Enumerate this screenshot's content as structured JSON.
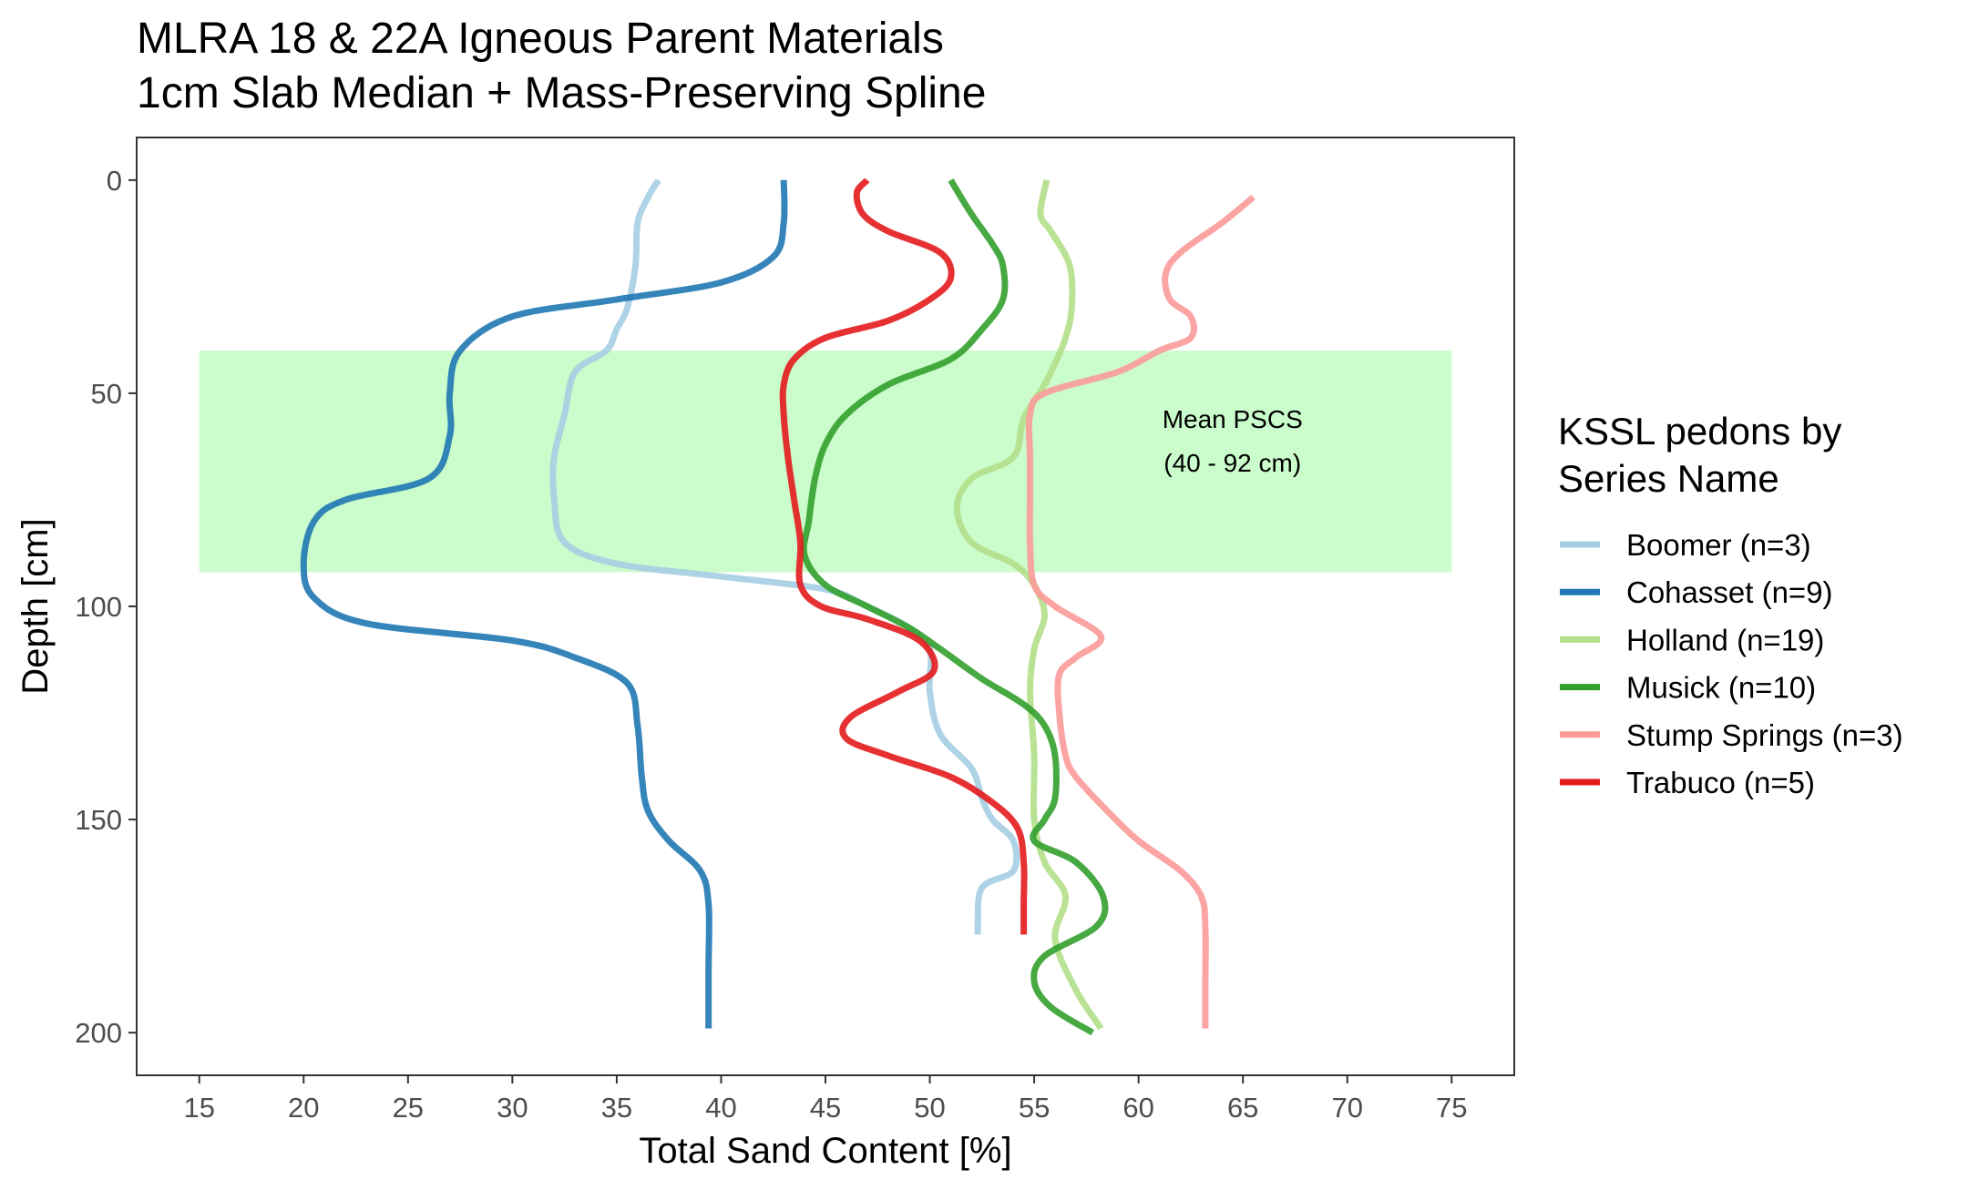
{
  "chart_data": {
    "type": "line",
    "title": [
      "MLRA 18 & 22A Igneous Parent Materials",
      "1cm Slab Median + Mass-Preserving Spline"
    ],
    "xlabel": "Total Sand Content [%]",
    "ylabel": "Depth [cm]",
    "xlim": [
      12,
      78
    ],
    "ylim": [
      210,
      -10
    ],
    "y_reversed": true,
    "x_ticks": [
      "15",
      "20",
      "25",
      "30",
      "35",
      "40",
      "45",
      "50",
      "55",
      "60",
      "65",
      "70",
      "75"
    ],
    "y_ticks": [
      "0",
      "50",
      "100",
      "150",
      "200"
    ],
    "grid": false,
    "legend": {
      "title": [
        "KSSL pedons by",
        "Series Name"
      ],
      "placement": "right"
    },
    "band": {
      "xmin": 15,
      "xmax": 75,
      "ymin": 40,
      "ymax": 92,
      "color": "#c8fcc8"
    },
    "annotation": [
      "Mean PSCS",
      "(40 - 92 cm)"
    ],
    "annotation_pos": {
      "x": 64.5,
      "y": 56
    },
    "series": [
      {
        "name": "Boomer (n=3)",
        "color": "#a6cee3",
        "points": [
          [
            37,
            0
          ],
          [
            36.5,
            4
          ],
          [
            36,
            10
          ],
          [
            35.9,
            20
          ],
          [
            35.5,
            30
          ],
          [
            35,
            35
          ],
          [
            34.5,
            40
          ],
          [
            33,
            45
          ],
          [
            32.5,
            55
          ],
          [
            32,
            65
          ],
          [
            32,
            75
          ],
          [
            32.5,
            85
          ],
          [
            35,
            90
          ],
          [
            40,
            93
          ],
          [
            45,
            96
          ],
          [
            47,
            100
          ],
          [
            49,
            105
          ],
          [
            50,
            110
          ],
          [
            50,
            120
          ],
          [
            50.5,
            130
          ],
          [
            52,
            138
          ],
          [
            52.5,
            145
          ],
          [
            53,
            150
          ],
          [
            54,
            155
          ],
          [
            54,
            162
          ],
          [
            52.5,
            166
          ],
          [
            52.3,
            175
          ],
          [
            52.3,
            177
          ]
        ]
      },
      {
        "name": "Cohasset (n=9)",
        "color": "#1f78b4",
        "points": [
          [
            43,
            0
          ],
          [
            43,
            10
          ],
          [
            42.5,
            18
          ],
          [
            40,
            24
          ],
          [
            35,
            28
          ],
          [
            30,
            32
          ],
          [
            27.5,
            40
          ],
          [
            27,
            50
          ],
          [
            27,
            60
          ],
          [
            26,
            70
          ],
          [
            22,
            75
          ],
          [
            20.5,
            80
          ],
          [
            20,
            90
          ],
          [
            20.5,
            98
          ],
          [
            23,
            104
          ],
          [
            30,
            108
          ],
          [
            33,
            112
          ],
          [
            35.5,
            118
          ],
          [
            36,
            128
          ],
          [
            36.2,
            140
          ],
          [
            36.5,
            148
          ],
          [
            37.5,
            155
          ],
          [
            39,
            162
          ],
          [
            39.4,
            170
          ],
          [
            39.4,
            185
          ],
          [
            39.4,
            199
          ]
        ]
      },
      {
        "name": "Holland (n=19)",
        "color": "#b2df8a",
        "points": [
          [
            55.6,
            0
          ],
          [
            55.3,
            8
          ],
          [
            55.8,
            12
          ],
          [
            56.7,
            20
          ],
          [
            56.8,
            30
          ],
          [
            56.5,
            37
          ],
          [
            56,
            43
          ],
          [
            55.5,
            48
          ],
          [
            54.5,
            56
          ],
          [
            54,
            65
          ],
          [
            52,
            70
          ],
          [
            51.3,
            77
          ],
          [
            52,
            85
          ],
          [
            54,
            90
          ],
          [
            55,
            95
          ],
          [
            55.5,
            102
          ],
          [
            55,
            110
          ],
          [
            54.8,
            120
          ],
          [
            55,
            135
          ],
          [
            55,
            150
          ],
          [
            55.5,
            160
          ],
          [
            56.5,
            168
          ],
          [
            56,
            178
          ],
          [
            57,
            190
          ],
          [
            58.2,
            199
          ]
        ]
      },
      {
        "name": "Musick (n=10)",
        "color": "#33a02c",
        "points": [
          [
            51,
            0
          ],
          [
            52,
            8
          ],
          [
            53,
            15
          ],
          [
            53.5,
            20
          ],
          [
            53.5,
            28
          ],
          [
            52.5,
            35
          ],
          [
            51,
            42
          ],
          [
            48,
            48
          ],
          [
            46,
            55
          ],
          [
            45,
            62
          ],
          [
            44.5,
            70
          ],
          [
            44.2,
            80
          ],
          [
            44,
            88
          ],
          [
            45,
            95
          ],
          [
            47,
            100
          ],
          [
            49,
            105
          ],
          [
            50.5,
            110
          ],
          [
            52.5,
            117
          ],
          [
            54.5,
            123
          ],
          [
            55.5,
            128
          ],
          [
            56,
            135
          ],
          [
            56,
            145
          ],
          [
            55.5,
            150
          ],
          [
            55,
            155
          ],
          [
            57,
            160
          ],
          [
            58.3,
            168
          ],
          [
            58,
            175
          ],
          [
            55.5,
            182
          ],
          [
            55,
            188
          ],
          [
            55.8,
            194
          ],
          [
            57.8,
            200
          ]
        ]
      },
      {
        "name": "Stump Springs (n=3)",
        "color": "#fb9a99",
        "points": [
          [
            65.5,
            4
          ],
          [
            64,
            10
          ],
          [
            62,
            17
          ],
          [
            61.3,
            22
          ],
          [
            61.5,
            28
          ],
          [
            62.5,
            32
          ],
          [
            62.5,
            37
          ],
          [
            61,
            40
          ],
          [
            59,
            45
          ],
          [
            55.5,
            50
          ],
          [
            54.8,
            55
          ],
          [
            54.8,
            65
          ],
          [
            54.8,
            75
          ],
          [
            54.8,
            85
          ],
          [
            55,
            95
          ],
          [
            56,
            100
          ],
          [
            58.2,
            107
          ],
          [
            57,
            112
          ],
          [
            56.2,
            116
          ],
          [
            56.2,
            125
          ],
          [
            56.5,
            135
          ],
          [
            57,
            140
          ],
          [
            58.5,
            148
          ],
          [
            60,
            155
          ],
          [
            62,
            162
          ],
          [
            63,
            168
          ],
          [
            63.2,
            175
          ],
          [
            63.2,
            190
          ],
          [
            63.2,
            199
          ]
        ]
      },
      {
        "name": "Trabuco (n=5)",
        "color": "#e31a1c",
        "points": [
          [
            47,
            0
          ],
          [
            46.5,
            3
          ],
          [
            46.8,
            8
          ],
          [
            48,
            12
          ],
          [
            50.5,
            17
          ],
          [
            51,
            23
          ],
          [
            50,
            28
          ],
          [
            48,
            33
          ],
          [
            45,
            37
          ],
          [
            43.5,
            42
          ],
          [
            43,
            48
          ],
          [
            43,
            55
          ],
          [
            43.2,
            65
          ],
          [
            43.5,
            75
          ],
          [
            43.8,
            85
          ],
          [
            43.8,
            95
          ],
          [
            44.8,
            100
          ],
          [
            47,
            103
          ],
          [
            49.5,
            108
          ],
          [
            50.2,
            115
          ],
          [
            48.5,
            120
          ],
          [
            46.2,
            126
          ],
          [
            46,
            131
          ],
          [
            48,
            135
          ],
          [
            51,
            140
          ],
          [
            53,
            146
          ],
          [
            54.2,
            152
          ],
          [
            54.5,
            160
          ],
          [
            54.5,
            170
          ],
          [
            54.5,
            177
          ]
        ]
      }
    ]
  }
}
